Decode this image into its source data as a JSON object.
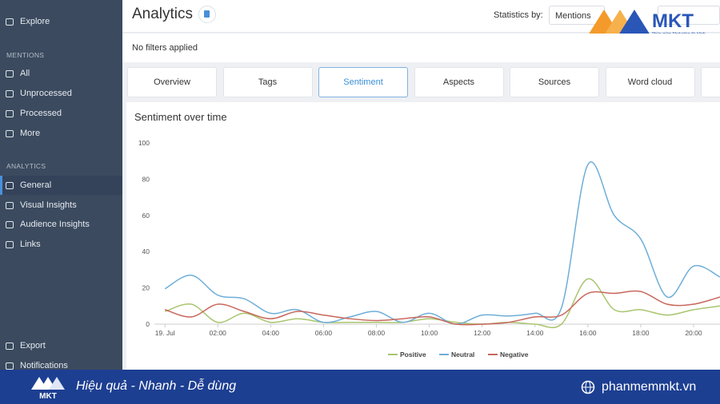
{
  "sidebar": {
    "top": "Explore",
    "sections": [
      {
        "title": "MENTIONS",
        "items": [
          "All",
          "Unprocessed",
          "Processed",
          "More"
        ]
      },
      {
        "title": "ANALYTICS",
        "items": [
          "General",
          "Visual Insights",
          "Audience Insights",
          "Links"
        ]
      }
    ],
    "bottom": [
      "Export",
      "Notifications"
    ]
  },
  "header": {
    "title": "Analytics",
    "statistics_label": "Statistics by:",
    "statistics_value": "Mentions"
  },
  "filters": "No filters applied",
  "tabs": [
    "Overview",
    "Tags",
    "Sentiment",
    "Aspects",
    "Sources",
    "Word cloud"
  ],
  "logo": {
    "brand": "MKT",
    "tagline": "Phần mềm Marketing đa kênh"
  },
  "banner": {
    "brand": "MKT",
    "slogan": "Hiệu quả - Nhanh - Dễ dùng",
    "website": "phanmemmkt.vn"
  },
  "chart_data": {
    "type": "line",
    "title": "Sentiment over time",
    "x": [
      0,
      1,
      2,
      3,
      4,
      5,
      6,
      7,
      8,
      9,
      10,
      11,
      12,
      13,
      14,
      15,
      16,
      17,
      18,
      19,
      20,
      21
    ],
    "xlim": [
      -0.4,
      21
    ],
    "xticks": [
      {
        "value": 0,
        "label": "19. Jul"
      },
      {
        "value": 2,
        "label": "02:00"
      },
      {
        "value": 4,
        "label": "04:00"
      },
      {
        "value": 6,
        "label": "06:00"
      },
      {
        "value": 8,
        "label": "08:00"
      },
      {
        "value": 10,
        "label": "10:00"
      },
      {
        "value": 12,
        "label": "12:00"
      },
      {
        "value": 14,
        "label": "14:00"
      },
      {
        "value": 16,
        "label": "16:00"
      },
      {
        "value": 18,
        "label": "18:00"
      },
      {
        "value": 20,
        "label": "20:00"
      }
    ],
    "ylim": [
      0,
      100
    ],
    "yticks": [
      0,
      20,
      40,
      60,
      80,
      100
    ],
    "grid": false,
    "series": [
      {
        "name": "Positive",
        "color": "#a9c56e",
        "values": [
          7,
          11,
          1,
          6,
          1,
          3,
          1,
          1,
          1,
          1,
          3,
          1,
          0,
          1,
          0,
          0,
          25,
          8,
          8,
          5,
          8,
          10
        ]
      },
      {
        "name": "Neutral",
        "color": "#6eaed8",
        "values": [
          19.5,
          27,
          16,
          14,
          6,
          8,
          1,
          4,
          7,
          1,
          6,
          0,
          5,
          4.5,
          6,
          9,
          88,
          60,
          47,
          15,
          32,
          26
        ]
      },
      {
        "name": "Negative",
        "color": "#c8675b",
        "values": [
          8,
          4,
          11,
          7,
          3,
          7,
          5,
          3,
          2,
          3,
          4,
          0,
          0,
          1,
          4,
          5,
          17,
          17,
          18,
          11,
          11,
          15
        ]
      }
    ]
  }
}
